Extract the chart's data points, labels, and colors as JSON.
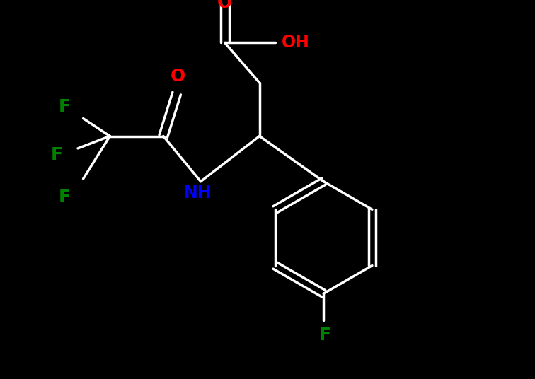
{
  "background_color": "#000000",
  "bond_color": "#ffffff",
  "atom_colors": {
    "O": "#ff0000",
    "N": "#0000ff",
    "F": "#008000",
    "C": "#ffffff",
    "H": "#ffffff"
  },
  "figsize": [
    7.56,
    5.36
  ],
  "dpi": 100,
  "xlim": [
    0,
    10
  ],
  "ylim": [
    0,
    7.1
  ]
}
